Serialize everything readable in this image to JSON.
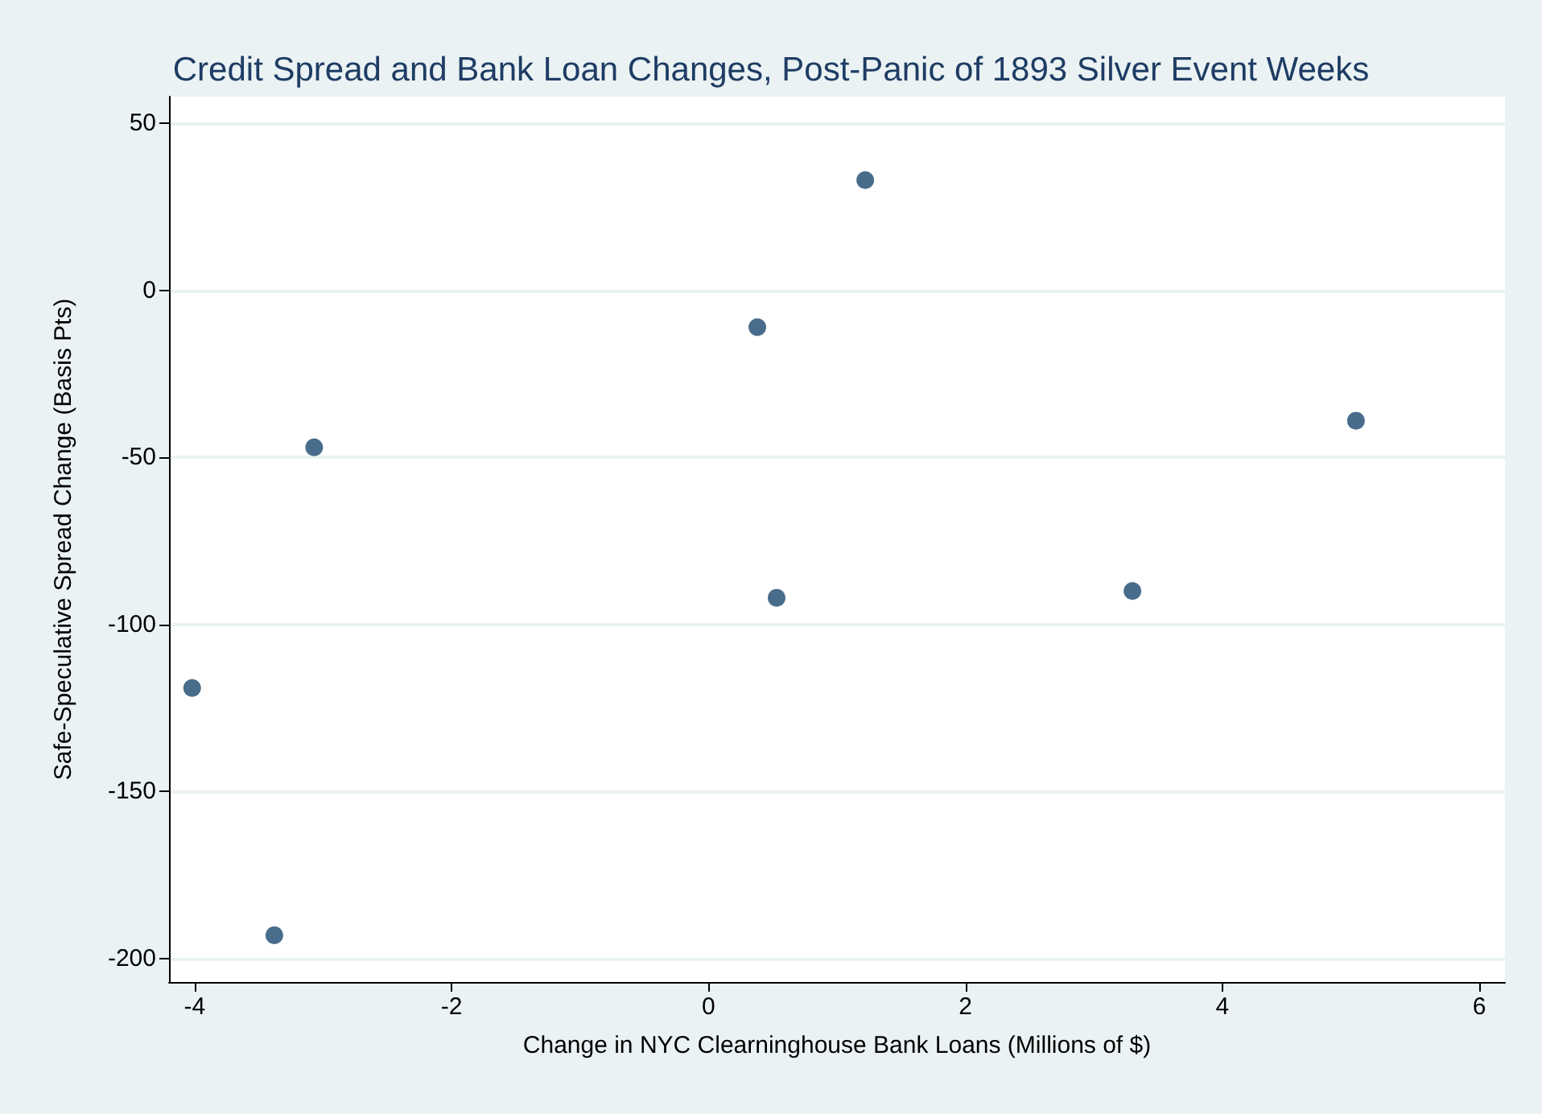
{
  "chart_data": {
    "type": "scatter",
    "title": "Credit Spread and Bank Loan Changes, Post-Panic of 1893 Silver Event Weeks",
    "xlabel": "Change in NYC Clearninghouse Bank Loans (Millions of $)",
    "ylabel": "Safe-Speculative Spread Change (Basis Pts)",
    "x": [
      -4.02,
      -3.38,
      -3.07,
      0.38,
      0.53,
      1.22,
      3.3,
      5.04
    ],
    "series": [
      {
        "color": "#1a476f",
        "values": [
          -119,
          -193,
          -47,
          -11,
          -92,
          33,
          -90,
          -39
        ]
      }
    ],
    "xlim": [
      -4.2,
      6.2
    ],
    "xticks": [
      -4,
      -2,
      0,
      2,
      4,
      6
    ],
    "ylim": [
      -207,
      58
    ],
    "yticks": [
      -200,
      -150,
      -100,
      -50,
      0,
      50
    ],
    "grid": "y",
    "marker": "circle"
  }
}
